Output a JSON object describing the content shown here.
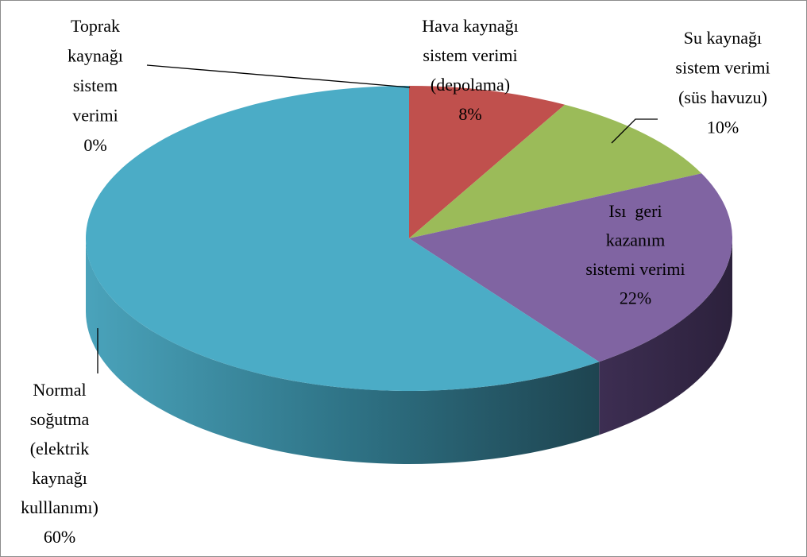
{
  "chart_data": {
    "type": "pie3d",
    "categories": [
      [
        "Toprak",
        "kaynağı",
        "sistem",
        "verimi"
      ],
      [
        "Hava kaynağı",
        "sistem verimi",
        "(depolama)"
      ],
      [
        "Su kaynağı",
        "sistem verimi",
        "(süs havuzu)"
      ],
      [
        "Isı  geri",
        "kazanım",
        "sistemi verimi"
      ],
      [
        "Normal",
        "soğutma",
        "(elektrik",
        "kaynağı",
        "kulllanımı)"
      ]
    ],
    "values": [
      0,
      8,
      10,
      22,
      60
    ],
    "value_labels": [
      "0%",
      "8%",
      "10%",
      "22%",
      "60%"
    ],
    "colors": [
      "#4f81bd",
      "#c0504d",
      "#9bbb59",
      "#8064a2",
      "#4bacc6"
    ]
  }
}
